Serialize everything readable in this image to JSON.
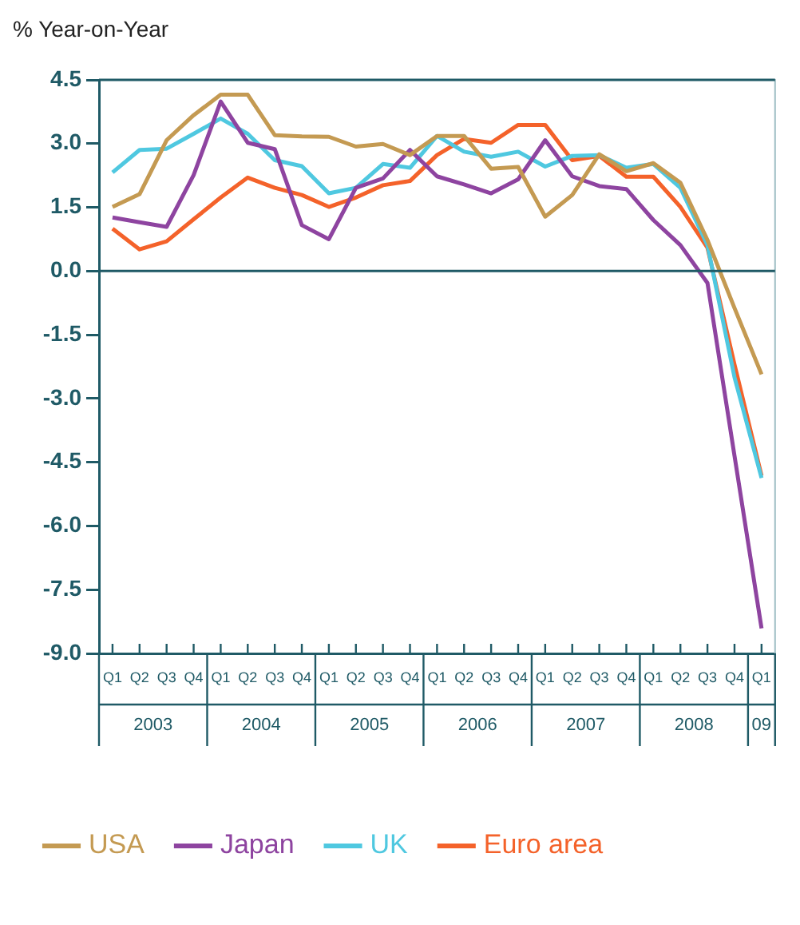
{
  "chart_data": {
    "type": "line",
    "ylabel": "% Year-on-Year",
    "categories": [
      "Q1",
      "Q2",
      "Q3",
      "Q4",
      "Q1",
      "Q2",
      "Q3",
      "Q4",
      "Q1",
      "Q2",
      "Q3",
      "Q4",
      "Q1",
      "Q2",
      "Q3",
      "Q4",
      "Q1",
      "Q2",
      "Q3",
      "Q4",
      "Q1",
      "Q2",
      "Q3",
      "Q4",
      "Q1"
    ],
    "annotations": [
      "2003",
      "2004",
      "2005",
      "2006",
      "2007",
      "2008",
      "09"
    ],
    "series": [
      {
        "name": "USA",
        "color": "#c49a52",
        "values": [
          1.51,
          1.81,
          3.08,
          3.67,
          4.15,
          4.15,
          3.2,
          3.17,
          3.16,
          2.93,
          2.99,
          2.73,
          3.18,
          3.18,
          2.41,
          2.45,
          1.28,
          1.79,
          2.75,
          2.35,
          2.54,
          2.08,
          0.73,
          -0.87,
          -2.43
        ]
      },
      {
        "name": "Japan",
        "color": "#8e44a0",
        "values": [
          1.26,
          1.15,
          1.04,
          2.26,
          3.99,
          3.02,
          2.87,
          1.08,
          0.75,
          1.96,
          2.18,
          2.85,
          2.23,
          2.04,
          1.83,
          2.16,
          3.08,
          2.23,
          2.0,
          1.93,
          1.2,
          0.61,
          -0.28,
          -4.35,
          -8.41
        ]
      },
      {
        "name": "UK",
        "color": "#4fc8e0",
        "values": [
          2.32,
          2.85,
          2.88,
          3.23,
          3.59,
          3.23,
          2.61,
          2.47,
          1.83,
          1.96,
          2.52,
          2.43,
          3.18,
          2.81,
          2.69,
          2.81,
          2.46,
          2.71,
          2.73,
          2.43,
          2.52,
          1.96,
          0.61,
          -2.5,
          -4.87
        ]
      },
      {
        "name": "Euro area",
        "color": "#f4622a",
        "values": [
          1.0,
          0.51,
          0.7,
          1.22,
          1.73,
          2.2,
          1.96,
          1.79,
          1.51,
          1.73,
          2.02,
          2.12,
          2.73,
          3.11,
          3.02,
          3.44,
          3.44,
          2.61,
          2.71,
          2.22,
          2.22,
          1.51,
          0.55,
          -2.2,
          -4.82
        ]
      }
    ],
    "ylim": [
      -9,
      4.5
    ],
    "yticks": [
      {
        "value": -9,
        "label": "-9.0"
      },
      {
        "value": -7.5,
        "label": "-7.5"
      },
      {
        "value": -6,
        "label": "-6.0"
      },
      {
        "value": -4.5,
        "label": "-4.5"
      },
      {
        "value": -3,
        "label": "-3.0"
      },
      {
        "value": -1.5,
        "label": "-1.5"
      },
      {
        "value": 0,
        "label": "0.0"
      },
      {
        "value": 1.5,
        "label": "1.5"
      },
      {
        "value": 3,
        "label": "3.0"
      },
      {
        "value": 4.5,
        "label": "4.5"
      }
    ],
    "ref_lines": [
      {
        "axis": "y",
        "value": 0,
        "color": "#1f5a66"
      }
    ],
    "grid": false,
    "legend": "bottom",
    "marker": "none",
    "line_style": "solid"
  }
}
